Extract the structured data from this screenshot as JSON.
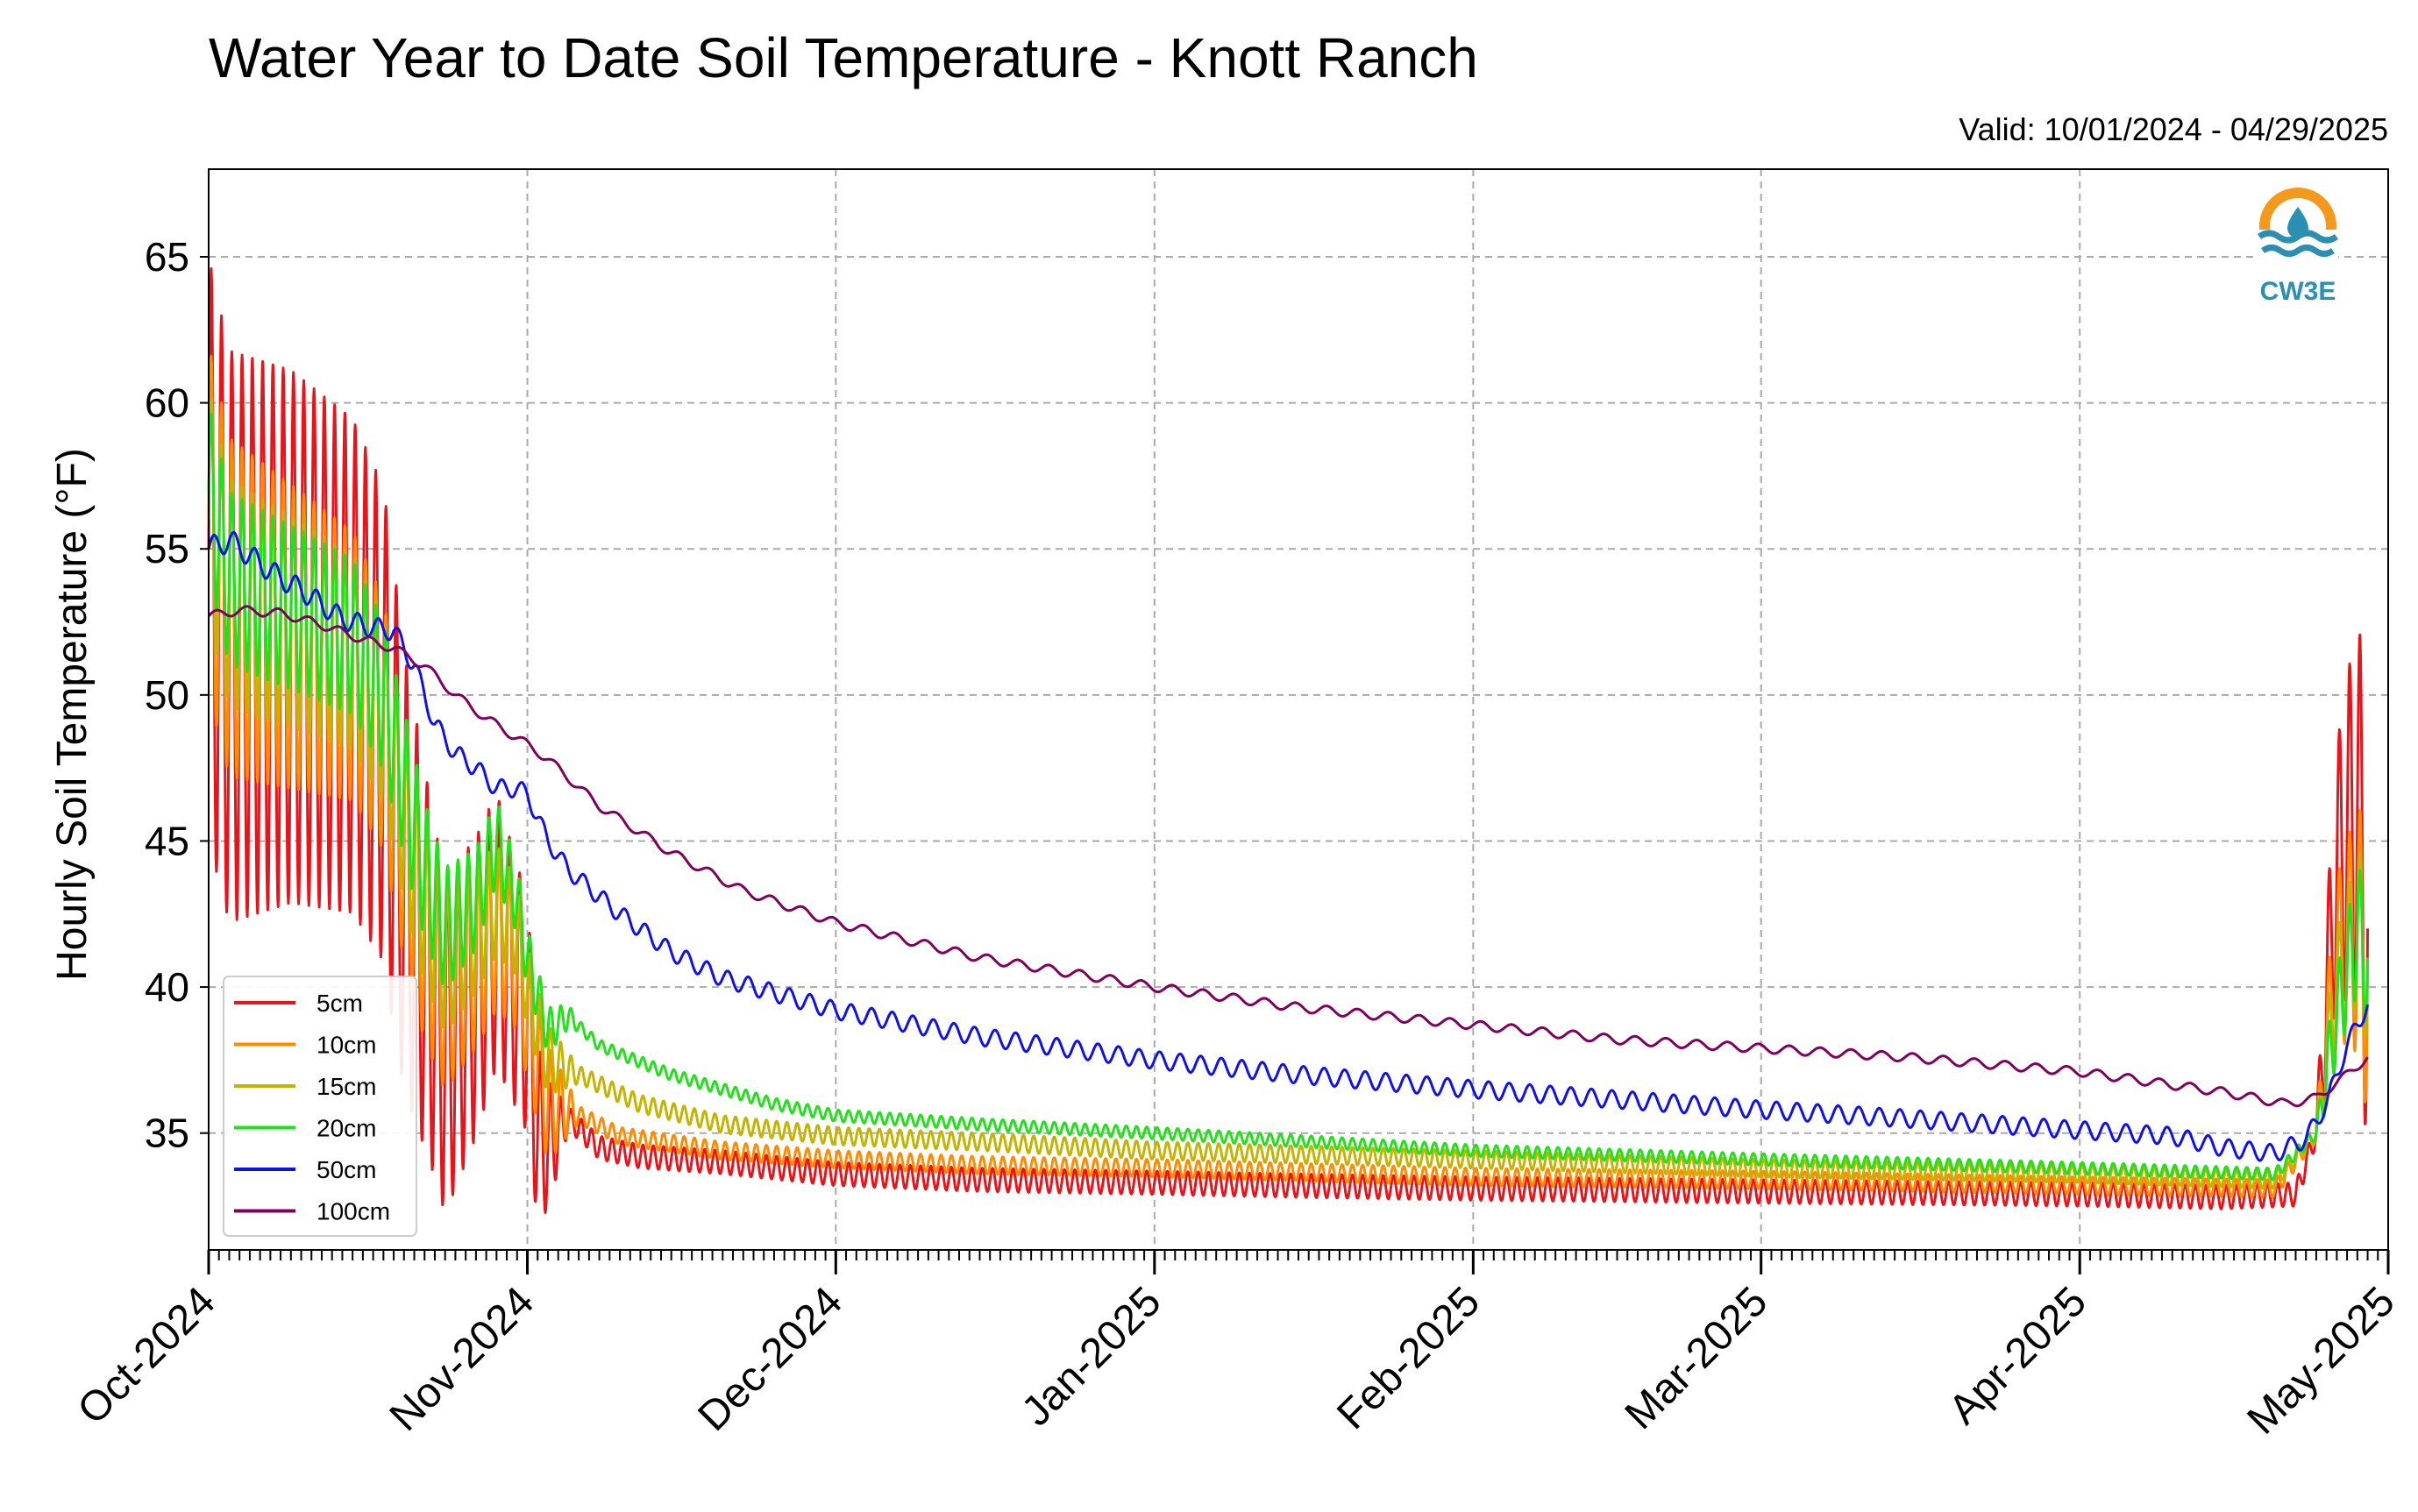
{
  "chart_data": {
    "type": "line",
    "title": "Water Year to Date Soil Temperature - Knott Ranch",
    "subtitle": "Valid: 10/01/2024 - 04/29/2025",
    "xlabel": "",
    "ylabel": "Hourly Soil Temperature (°F)",
    "xlim": [
      "2024-10-01",
      "2025-05-01"
    ],
    "ylim": [
      31,
      68
    ],
    "grid": true,
    "legend_position": "lower-left",
    "x_ticks": [
      {
        "date": "2024-10-01",
        "label": "Oct-2024"
      },
      {
        "date": "2024-11-01",
        "label": "Nov-2024"
      },
      {
        "date": "2024-12-01",
        "label": "Dec-2024"
      },
      {
        "date": "2025-01-01",
        "label": "Jan-2025"
      },
      {
        "date": "2025-02-01",
        "label": "Feb-2025"
      },
      {
        "date": "2025-03-01",
        "label": "Mar-2025"
      },
      {
        "date": "2025-04-01",
        "label": "Apr-2025"
      },
      {
        "date": "2025-05-01",
        "label": "May-2025"
      }
    ],
    "y_ticks": [
      35,
      40,
      45,
      50,
      55,
      60,
      65
    ],
    "series": [
      {
        "name": "5cm",
        "color": "#e8141b",
        "points": [
          [
            "2024-10-01",
            55
          ],
          [
            "2024-10-03",
            52
          ],
          [
            "2024-10-06",
            52
          ],
          [
            "2024-10-09",
            52
          ],
          [
            "2024-10-12",
            51.5
          ],
          [
            "2024-10-15",
            51
          ],
          [
            "2024-10-18",
            49
          ],
          [
            "2024-10-20",
            44
          ],
          [
            "2024-10-22",
            41
          ],
          [
            "2024-10-24",
            38
          ],
          [
            "2024-10-27",
            40
          ],
          [
            "2024-10-29",
            42
          ],
          [
            "2024-10-31",
            40
          ],
          [
            "2024-11-01",
            39
          ],
          [
            "2024-11-02",
            35
          ],
          [
            "2024-11-03",
            34.6
          ],
          [
            "2024-11-05",
            35.5
          ],
          [
            "2024-11-08",
            34.5
          ],
          [
            "2024-11-12",
            34.2
          ],
          [
            "2024-11-20",
            34.0
          ],
          [
            "2024-12-01",
            33.6
          ],
          [
            "2024-12-15",
            33.4
          ],
          [
            "2025-01-01",
            33.3
          ],
          [
            "2025-01-15",
            33.2
          ],
          [
            "2025-02-01",
            33.1
          ],
          [
            "2025-03-01",
            33.0
          ],
          [
            "2025-04-01",
            32.9
          ],
          [
            "2025-04-15",
            32.8
          ],
          [
            "2025-04-22",
            32.9
          ],
          [
            "2025-04-24",
            35
          ],
          [
            "2025-04-26",
            44
          ],
          [
            "2025-04-28",
            46
          ],
          [
            "2025-04-29",
            42
          ]
        ],
        "swing": [
          [
            0,
            10
          ],
          [
            18,
            8
          ],
          [
            22,
            6
          ],
          [
            31,
            4
          ],
          [
            35,
            0.4
          ],
          [
            205,
            0.4
          ],
          [
            206,
            3
          ],
          [
            210,
            8
          ]
        ],
        "period": 1
      },
      {
        "name": "10cm",
        "color": "#ff8c00",
        "points": [
          [
            "2024-10-01",
            56
          ],
          [
            "2024-10-03",
            53
          ],
          [
            "2024-10-06",
            52.5
          ],
          [
            "2024-10-09",
            52
          ],
          [
            "2024-10-12",
            51.5
          ],
          [
            "2024-10-15",
            51
          ],
          [
            "2024-10-18",
            49
          ],
          [
            "2024-10-20",
            45
          ],
          [
            "2024-10-22",
            42
          ],
          [
            "2024-10-24",
            40
          ],
          [
            "2024-10-27",
            41
          ],
          [
            "2024-10-29",
            42
          ],
          [
            "2024-10-31",
            41
          ],
          [
            "2024-11-01",
            39
          ],
          [
            "2024-11-03",
            36
          ],
          [
            "2024-11-05",
            35.8
          ],
          [
            "2024-11-10",
            34.9
          ],
          [
            "2024-11-20",
            34.4
          ],
          [
            "2024-12-01",
            34.1
          ],
          [
            "2024-12-15",
            33.9
          ],
          [
            "2025-01-01",
            33.8
          ],
          [
            "2025-02-01",
            33.5
          ],
          [
            "2025-03-01",
            33.4
          ],
          [
            "2025-04-01",
            33.2
          ],
          [
            "2025-04-20",
            33.1
          ],
          [
            "2025-04-24",
            35
          ],
          [
            "2025-04-26",
            41
          ],
          [
            "2025-04-28",
            42
          ],
          [
            "2025-04-29",
            40.5
          ]
        ],
        "swing": [
          [
            0,
            6
          ],
          [
            20,
            4
          ],
          [
            33,
            2
          ],
          [
            36,
            0.3
          ],
          [
            205,
            0.3
          ],
          [
            206,
            2
          ],
          [
            210,
            5
          ]
        ],
        "period": 1
      },
      {
        "name": "15cm",
        "color": "#c2b400",
        "points": [
          [
            "2024-10-01",
            56.5
          ],
          [
            "2024-10-03",
            53.5
          ],
          [
            "2024-10-06",
            53
          ],
          [
            "2024-10-09",
            52.5
          ],
          [
            "2024-10-12",
            52
          ],
          [
            "2024-10-15",
            51.5
          ],
          [
            "2024-10-18",
            49.5
          ],
          [
            "2024-10-20",
            46
          ],
          [
            "2024-10-22",
            43
          ],
          [
            "2024-10-24",
            41
          ],
          [
            "2024-10-27",
            42
          ],
          [
            "2024-10-29",
            43
          ],
          [
            "2024-10-31",
            42
          ],
          [
            "2024-11-01",
            40
          ],
          [
            "2024-11-03",
            37.5
          ],
          [
            "2024-11-06",
            37
          ],
          [
            "2024-11-12",
            36
          ],
          [
            "2024-11-20",
            35.3
          ],
          [
            "2024-12-01",
            34.9
          ],
          [
            "2024-12-15",
            34.7
          ],
          [
            "2025-01-01",
            34.4
          ],
          [
            "2025-02-01",
            34.1
          ],
          [
            "2025-03-01",
            33.8
          ],
          [
            "2025-04-01",
            33.6
          ],
          [
            "2025-04-20",
            33.4
          ],
          [
            "2025-04-24",
            35
          ],
          [
            "2025-04-26",
            40
          ],
          [
            "2025-04-28",
            42
          ],
          [
            "2025-04-29",
            41
          ]
        ],
        "swing": [
          [
            0,
            4
          ],
          [
            20,
            3
          ],
          [
            33,
            1.2
          ],
          [
            36,
            0.3
          ],
          [
            205,
            0.3
          ],
          [
            206,
            1.5
          ],
          [
            210,
            3
          ]
        ],
        "period": 1
      },
      {
        "name": "20cm",
        "color": "#22e01a",
        "points": [
          [
            "2024-10-01",
            57
          ],
          [
            "2024-10-03",
            54
          ],
          [
            "2024-10-06",
            53.5
          ],
          [
            "2024-10-09",
            53
          ],
          [
            "2024-10-12",
            52.5
          ],
          [
            "2024-10-15",
            52
          ],
          [
            "2024-10-18",
            50
          ],
          [
            "2024-10-20",
            47
          ],
          [
            "2024-10-22",
            44
          ],
          [
            "2024-10-24",
            42
          ],
          [
            "2024-10-27",
            43
          ],
          [
            "2024-10-29",
            45
          ],
          [
            "2024-10-31",
            43
          ],
          [
            "2024-11-01",
            41
          ],
          [
            "2024-11-03",
            38.5
          ],
          [
            "2024-11-05",
            39
          ],
          [
            "2024-11-08",
            38
          ],
          [
            "2024-11-15",
            37
          ],
          [
            "2024-11-25",
            36
          ],
          [
            "2024-12-01",
            35.6
          ],
          [
            "2024-12-15",
            35.3
          ],
          [
            "2025-01-01",
            35.0
          ],
          [
            "2025-02-01",
            34.4
          ],
          [
            "2025-03-01",
            34.1
          ],
          [
            "2025-04-01",
            33.8
          ],
          [
            "2025-04-20",
            33.6
          ],
          [
            "2025-04-24",
            35
          ],
          [
            "2025-04-26",
            39
          ],
          [
            "2025-04-28",
            42
          ],
          [
            "2025-04-29",
            41
          ]
        ],
        "swing": [
          [
            0,
            3
          ],
          [
            20,
            2.5
          ],
          [
            33,
            0.8
          ],
          [
            36,
            0.2
          ],
          [
            205,
            0.2
          ],
          [
            206,
            1.2
          ],
          [
            210,
            2.5
          ]
        ],
        "period": 1
      },
      {
        "name": "50cm",
        "color": "#1010ee",
        "points": [
          [
            "2024-10-01",
            55
          ],
          [
            "2024-10-03",
            55.3
          ],
          [
            "2024-10-06",
            54.5
          ],
          [
            "2024-10-08",
            54
          ],
          [
            "2024-10-10",
            53.6
          ],
          [
            "2024-10-14",
            52.6
          ],
          [
            "2024-10-17",
            52.3
          ],
          [
            "2024-10-19",
            52.2
          ],
          [
            "2024-10-21",
            51
          ],
          [
            "2024-10-23",
            49
          ],
          [
            "2024-10-25",
            48
          ],
          [
            "2024-10-27",
            47.5
          ],
          [
            "2024-10-29",
            46.8
          ],
          [
            "2024-10-31",
            46.8
          ],
          [
            "2024-11-01",
            46.6
          ],
          [
            "2024-11-03",
            45
          ],
          [
            "2024-11-05",
            44
          ],
          [
            "2024-11-10",
            42.5
          ],
          [
            "2024-11-15",
            41.2
          ],
          [
            "2024-11-20",
            40.3
          ],
          [
            "2024-12-01",
            39.2
          ],
          [
            "2024-12-15",
            38.3
          ],
          [
            "2025-01-01",
            37.5
          ],
          [
            "2025-01-15",
            37.0
          ],
          [
            "2025-02-01",
            36.5
          ],
          [
            "2025-03-01",
            35.8
          ],
          [
            "2025-03-15",
            35.5
          ],
          [
            "2025-04-01",
            35.1
          ],
          [
            "2025-04-10",
            34.9
          ],
          [
            "2025-04-15",
            34.5
          ],
          [
            "2025-04-20",
            34.3
          ],
          [
            "2025-04-23",
            34.8
          ],
          [
            "2025-04-25",
            36
          ],
          [
            "2025-04-27",
            38
          ],
          [
            "2025-04-29",
            39.4
          ]
        ],
        "swing": [
          [
            0,
            0.4
          ],
          [
            30,
            0.3
          ],
          [
            205,
            0.3
          ]
        ],
        "period": 2
      },
      {
        "name": "100cm",
        "color": "#800060",
        "points": [
          [
            "2024-10-01",
            52.7
          ],
          [
            "2024-10-04",
            52.9
          ],
          [
            "2024-10-08",
            52.8
          ],
          [
            "2024-10-12",
            52.4
          ],
          [
            "2024-10-16",
            51.9
          ],
          [
            "2024-10-19",
            51.6
          ],
          [
            "2024-10-22",
            51
          ],
          [
            "2024-10-25",
            50
          ],
          [
            "2024-10-28",
            49.2
          ],
          [
            "2024-11-01",
            48.3
          ],
          [
            "2024-11-03",
            47.8
          ],
          [
            "2024-11-08",
            46.2
          ],
          [
            "2024-11-15",
            44.6
          ],
          [
            "2024-11-22",
            43.3
          ],
          [
            "2024-12-01",
            42.2
          ],
          [
            "2024-12-15",
            41.0
          ],
          [
            "2025-01-01",
            40.0
          ],
          [
            "2025-01-15",
            39.3
          ],
          [
            "2025-02-01",
            38.7
          ],
          [
            "2025-02-15",
            38.2
          ],
          [
            "2025-03-01",
            37.9
          ],
          [
            "2025-03-15",
            37.6
          ],
          [
            "2025-04-01",
            37.1
          ],
          [
            "2025-04-15",
            36.4
          ],
          [
            "2025-04-21",
            36.0
          ],
          [
            "2025-04-24",
            36.2
          ],
          [
            "2025-04-27",
            37
          ],
          [
            "2025-04-29",
            37.6
          ]
        ],
        "swing": [
          [
            0,
            0.15
          ]
        ],
        "period": 3
      }
    ]
  },
  "logo": {
    "text": "CW3E"
  }
}
